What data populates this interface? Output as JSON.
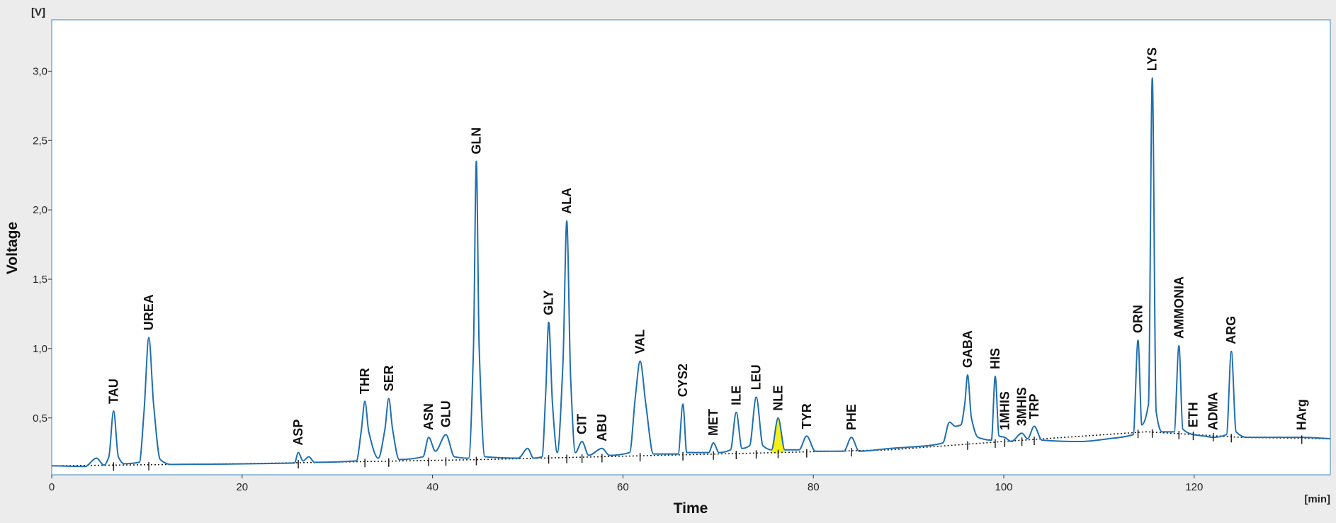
{
  "chart_data": {
    "type": "chromatogram",
    "x_label": "Time",
    "y_label": "Voltage",
    "x_unit": "[min]",
    "y_unit": "[V]",
    "xlim": [
      0,
      134.3
    ],
    "ylim": [
      0.09,
      3.37
    ],
    "xticks": [
      0,
      20,
      40,
      60,
      80,
      100,
      120
    ],
    "yticks": [
      {
        "value": 0.5,
        "label": "0,5"
      },
      {
        "value": 1.0,
        "label": "1,0"
      },
      {
        "value": 1.5,
        "label": "1,5"
      },
      {
        "value": 2.0,
        "label": "2,0"
      },
      {
        "value": 2.5,
        "label": "2,5"
      },
      {
        "value": 3.0,
        "label": "3,0"
      }
    ],
    "color": "#1f6fb0",
    "x": [
      0,
      3.5,
      4.7,
      5.5,
      6.0,
      6.5,
      7.0,
      7.6,
      9.2,
      9.7,
      10.2,
      10.7,
      11.4,
      12.5,
      25.5,
      25.9,
      26.4,
      27.0,
      27.6,
      32.0,
      32.5,
      32.9,
      33.3,
      34.3,
      35.0,
      35.4,
      35.8,
      36.5,
      39.0,
      39.6,
      40.3,
      41.4,
      42.3,
      43.8,
      44.3,
      44.6,
      44.9,
      45.5,
      49.0,
      50.0,
      50.6,
      51.5,
      51.9,
      52.2,
      52.6,
      53.1,
      53.7,
      54.1,
      54.5,
      55.0,
      55.7,
      56.4,
      57.8,
      58.6,
      60.7,
      61.3,
      61.8,
      62.4,
      63.2,
      65.8,
      66.3,
      66.7,
      69.0,
      69.5,
      70.1,
      71.3,
      71.9,
      72.5,
      73.3,
      74.0,
      74.7,
      75.6,
      76.3,
      77.0,
      78.5,
      79.3,
      80.2,
      83.2,
      84.0,
      84.8,
      88.0,
      92.0,
      93.6,
      94.3,
      94.9,
      95.5,
      95.9,
      96.2,
      96.6,
      97.3,
      98.7,
      99.1,
      99.5,
      100.1,
      100.8,
      101.9,
      102.5,
      103.2,
      104.0,
      108.0,
      111.0,
      113.6,
      114.1,
      114.5,
      115.2,
      115.6,
      116.0,
      116.6,
      117.9,
      118.4,
      118.8,
      119.9,
      121.0,
      122.0,
      123.4,
      123.9,
      124.4,
      125.5,
      131.3,
      134.3
    ],
    "values": [
      0.155,
      0.15,
      0.21,
      0.16,
      0.22,
      0.55,
      0.22,
      0.17,
      0.18,
      0.55,
      1.08,
      0.6,
      0.2,
      0.165,
      0.175,
      0.25,
      0.19,
      0.22,
      0.18,
      0.19,
      0.4,
      0.62,
      0.4,
      0.21,
      0.42,
      0.64,
      0.42,
      0.2,
      0.22,
      0.36,
      0.26,
      0.38,
      0.22,
      0.21,
      1.0,
      2.35,
      1.0,
      0.22,
      0.21,
      0.28,
      0.21,
      0.22,
      0.7,
      1.19,
      0.6,
      0.25,
      0.9,
      1.92,
      0.8,
      0.25,
      0.33,
      0.23,
      0.28,
      0.23,
      0.25,
      0.65,
      0.91,
      0.6,
      0.24,
      0.24,
      0.6,
      0.25,
      0.25,
      0.32,
      0.25,
      0.27,
      0.54,
      0.28,
      0.3,
      0.65,
      0.3,
      0.27,
      0.5,
      0.27,
      0.27,
      0.37,
      0.26,
      0.26,
      0.36,
      0.26,
      0.28,
      0.3,
      0.32,
      0.47,
      0.44,
      0.45,
      0.6,
      0.81,
      0.5,
      0.36,
      0.34,
      0.8,
      0.37,
      0.36,
      0.33,
      0.39,
      0.35,
      0.44,
      0.34,
      0.33,
      0.35,
      0.38,
      1.06,
      0.45,
      0.6,
      2.95,
      0.55,
      0.4,
      0.4,
      1.02,
      0.42,
      0.38,
      0.37,
      0.36,
      0.38,
      0.98,
      0.4,
      0.36,
      0.36,
      0.35
    ],
    "baseline": {
      "color": "#222222",
      "x": [
        0,
        20,
        45,
        70,
        88,
        100,
        115,
        125,
        134.3
      ],
      "values": [
        0.155,
        0.17,
        0.2,
        0.24,
        0.27,
        0.33,
        0.4,
        0.36,
        0.35
      ]
    },
    "peaks": [
      {
        "label": "TAU",
        "x": 6.5
      },
      {
        "label": "UREA",
        "x": 10.2
      },
      {
        "label": "ASP",
        "x": 25.9
      },
      {
        "label": "THR",
        "x": 32.9
      },
      {
        "label": "SER",
        "x": 35.4
      },
      {
        "label": "ASN",
        "x": 39.6
      },
      {
        "label": "GLU",
        "x": 41.4
      },
      {
        "label": "GLN",
        "x": 44.6
      },
      {
        "label": "GLY",
        "x": 52.2
      },
      {
        "label": "ALA",
        "x": 54.1
      },
      {
        "label": "CIT",
        "x": 55.7
      },
      {
        "label": "ABU",
        "x": 57.8
      },
      {
        "label": "VAL",
        "x": 61.8
      },
      {
        "label": "CYS2",
        "x": 66.3
      },
      {
        "label": "MET",
        "x": 69.5
      },
      {
        "label": "ILE",
        "x": 71.9
      },
      {
        "label": "LEU",
        "x": 74.0
      },
      {
        "label": "NLE",
        "x": 76.3,
        "fill": "#f5ef1a"
      },
      {
        "label": "TYR",
        "x": 79.3
      },
      {
        "label": "PHE",
        "x": 84.0
      },
      {
        "label": "GABA",
        "x": 96.2
      },
      {
        "label": "HIS",
        "x": 99.1
      },
      {
        "label": "1MHIS",
        "x": 100.1
      },
      {
        "label": "3MHIS",
        "x": 101.9
      },
      {
        "label": "TRP",
        "x": 103.2
      },
      {
        "label": "ORN",
        "x": 114.1
      },
      {
        "label": "LYS",
        "x": 115.6
      },
      {
        "label": "AMMONIA",
        "x": 118.4
      },
      {
        "label": "ETH",
        "x": 119.9
      },
      {
        "label": "ADMA",
        "x": 122.0
      },
      {
        "label": "ARG",
        "x": 123.9
      },
      {
        "label": "HArg",
        "x": 131.3
      }
    ]
  }
}
